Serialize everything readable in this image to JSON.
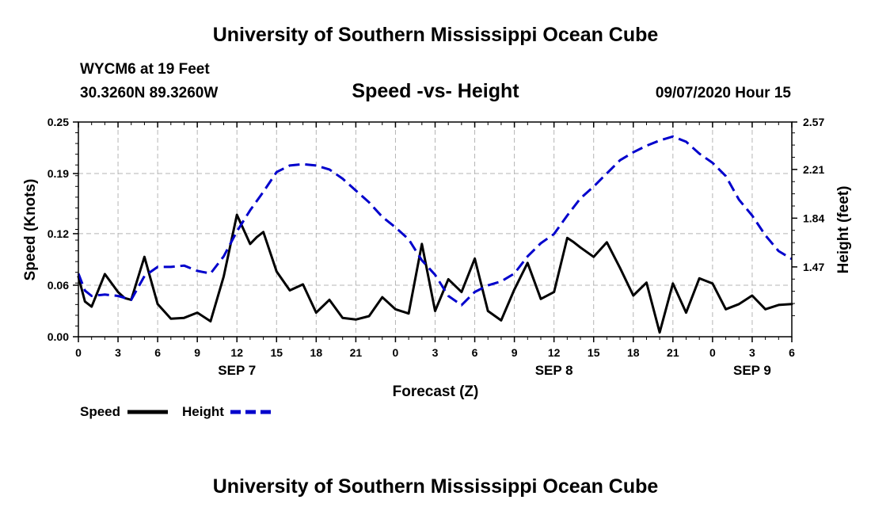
{
  "header": {
    "title": "University of Southern Mississippi Ocean Cube",
    "station": "WYCM6 at 19 Feet",
    "coords": "30.3260N 89.3260W",
    "subtitle": "Speed -vs- Height",
    "datetime": "09/07/2020 Hour 15"
  },
  "footer": {
    "title": "University of Southern Mississippi Ocean Cube"
  },
  "chart_data": {
    "type": "line",
    "title": "Speed -vs- Height",
    "xlabel": "Forecast (Z)",
    "ylabel": "Speed (Knots)",
    "y2label": "Height (feet)",
    "x_range_hours": [
      0,
      54
    ],
    "x_tick_labels": [
      "0",
      "3",
      "6",
      "9",
      "12",
      "15",
      "18",
      "21",
      "0",
      "3",
      "6",
      "9",
      "12",
      "15",
      "18",
      "21",
      "0",
      "3",
      "6"
    ],
    "date_labels": [
      {
        "hour": 12,
        "label": "SEP 7"
      },
      {
        "hour": 36,
        "label": "SEP 8"
      },
      {
        "hour": 51,
        "label": "SEP 9"
      }
    ],
    "ylim": [
      0,
      0.25
    ],
    "y_ticks": [
      "0.00",
      "0.06",
      "0.12",
      "0.19",
      "0.25"
    ],
    "y2lim": [
      0.94,
      2.57
    ],
    "y2_ticks": [
      "1.47",
      "1.84",
      "2.21",
      "2.57"
    ],
    "grid": true,
    "legend": [
      {
        "name": "Speed",
        "color": "#000000",
        "style": "solid"
      },
      {
        "name": "Height",
        "color": "#0000cc",
        "style": "dashed"
      }
    ],
    "series": [
      {
        "name": "Speed",
        "axis": "left",
        "color": "#000000",
        "x": [
          0,
          0.5,
          1,
          2,
          3,
          3.5,
          4,
          5,
          6,
          7,
          8,
          9,
          10,
          11,
          12,
          13,
          13.5,
          14,
          15,
          16,
          17,
          18,
          19,
          20,
          21,
          22,
          23,
          24,
          25,
          26,
          27,
          28,
          29,
          30,
          31,
          32,
          33,
          34,
          35,
          36,
          37,
          37.5,
          38,
          39,
          40,
          41,
          42,
          43,
          44,
          45,
          46,
          47,
          48,
          49,
          50,
          51,
          52,
          53,
          54
        ],
        "values": [
          0.07,
          0.041,
          0.035,
          0.073,
          0.052,
          0.045,
          0.043,
          0.093,
          0.038,
          0.021,
          0.022,
          0.028,
          0.018,
          0.07,
          0.142,
          0.108,
          0.116,
          0.122,
          0.076,
          0.054,
          0.061,
          0.028,
          0.043,
          0.022,
          0.02,
          0.024,
          0.046,
          0.032,
          0.027,
          0.108,
          0.03,
          0.067,
          0.052,
          0.091,
          0.03,
          0.019,
          0.055,
          0.086,
          0.044,
          0.052,
          0.115,
          0.11,
          0.104,
          0.093,
          0.11,
          0.08,
          0.048,
          0.063,
          0.005,
          0.062,
          0.028,
          0.068,
          0.062,
          0.032,
          0.038,
          0.048,
          0.032,
          0.037,
          0.038
        ]
      },
      {
        "name": "Height",
        "axis": "right",
        "color": "#0000cc",
        "x": [
          0,
          0.5,
          1,
          2,
          3,
          4,
          5,
          6,
          7,
          8,
          9,
          10,
          11,
          12,
          13,
          14,
          15,
          16,
          17,
          18,
          19,
          20,
          21,
          22,
          23,
          24,
          25,
          26,
          27,
          28,
          29,
          30,
          31,
          32,
          33,
          34,
          35,
          36,
          37,
          38,
          39,
          40,
          41,
          42,
          43,
          44,
          45,
          46,
          47,
          48,
          49,
          50,
          51,
          52,
          53,
          54
        ],
        "values": [
          1.42,
          1.29,
          1.25,
          1.26,
          1.25,
          1.22,
          1.4,
          1.47,
          1.47,
          1.48,
          1.44,
          1.42,
          1.55,
          1.74,
          1.9,
          2.04,
          2.19,
          2.24,
          2.25,
          2.24,
          2.21,
          2.14,
          2.05,
          1.96,
          1.85,
          1.77,
          1.68,
          1.52,
          1.41,
          1.25,
          1.18,
          1.28,
          1.33,
          1.36,
          1.42,
          1.55,
          1.65,
          1.72,
          1.86,
          1.99,
          2.08,
          2.18,
          2.28,
          2.34,
          2.39,
          2.43,
          2.46,
          2.42,
          2.33,
          2.26,
          2.16,
          1.98,
          1.86,
          1.71,
          1.59,
          1.53
        ]
      }
    ]
  }
}
